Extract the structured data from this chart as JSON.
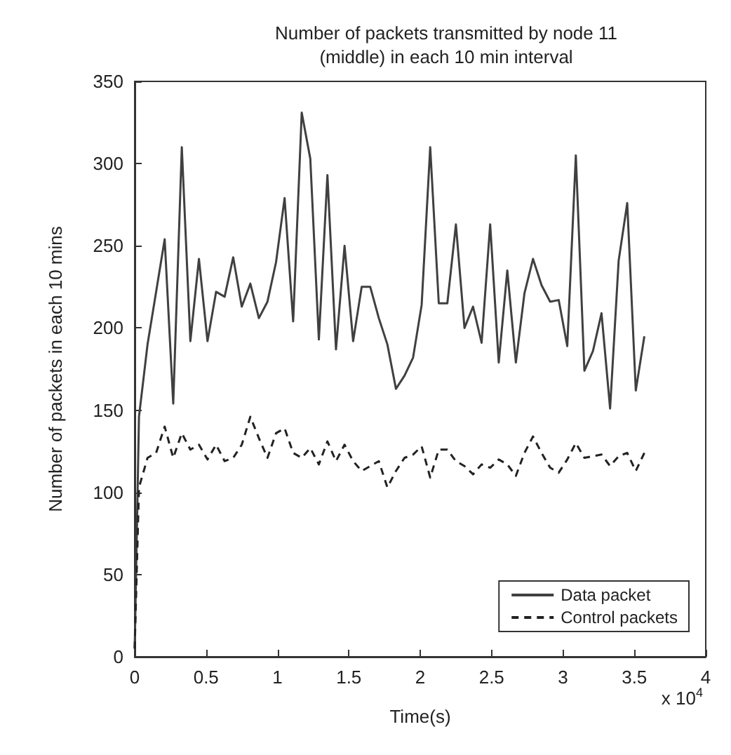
{
  "chart_data": {
    "type": "line",
    "title": "Number of packets transmitted by node 11\n(middle) in each 10 min interval",
    "xlabel": "Time(s)",
    "ylabel": "Number of packets in each 10 mins",
    "annotations": [
      "x 10$^{4}$"
    ],
    "x": [
      0,
      0.03,
      0.09,
      0.15,
      0.21,
      0.27,
      0.33,
      0.39,
      0.45,
      0.51,
      0.57,
      0.63,
      0.69,
      0.75,
      0.81,
      0.87,
      0.93,
      0.99,
      1.05,
      1.11,
      1.17,
      1.23,
      1.29,
      1.35,
      1.41,
      1.47,
      1.53,
      1.59,
      1.65,
      1.71,
      1.77,
      1.83,
      1.89,
      1.95,
      2.01,
      2.07,
      2.13,
      2.19,
      2.25,
      2.31,
      2.37,
      2.43,
      2.49,
      2.55,
      2.61,
      2.67,
      2.73,
      2.79,
      2.85,
      2.91,
      2.97,
      3.03,
      3.09,
      3.15,
      3.21,
      3.27,
      3.33,
      3.39,
      3.45,
      3.51,
      3.57
    ],
    "series": [
      {
        "name": "Data packet",
        "color": "#404040",
        "line_style": "solid",
        "values": [
          5,
          146,
          190,
          222,
          254,
          154,
          310,
          192,
          242,
          192,
          222,
          219,
          243,
          213,
          227,
          206,
          216,
          240,
          279,
          204,
          331,
          303,
          193,
          293,
          187,
          250,
          192,
          225,
          225,
          206,
          190,
          163,
          171,
          182,
          214,
          310,
          215,
          215,
          263,
          200,
          213,
          191,
          263,
          179,
          235,
          179,
          221,
          242,
          226,
          216,
          217,
          189,
          305,
          174,
          186,
          209,
          151,
          241,
          276,
          162,
          195
        ]
      },
      {
        "name": "Control packets",
        "color": "#222222",
        "line_style": "dashed",
        "values": [
          5,
          103,
          121,
          124,
          140,
          121,
          136,
          126,
          129,
          120,
          129,
          119,
          121,
          129,
          146,
          133,
          121,
          136,
          139,
          124,
          121,
          127,
          117,
          131,
          119,
          129,
          119,
          113,
          116,
          119,
          103,
          113,
          121,
          123,
          128,
          109,
          126,
          126,
          119,
          116,
          111,
          117,
          115,
          120,
          117,
          110,
          124,
          134,
          124,
          115,
          112,
          120,
          130,
          121,
          122,
          123,
          116,
          122,
          124,
          113,
          124
        ]
      }
    ],
    "xlim": [
      0,
      4
    ],
    "xticks": [
      0,
      0.5,
      1,
      1.5,
      2,
      2.5,
      3,
      3.5,
      4
    ],
    "ylim": [
      0,
      350
    ],
    "yticks": [
      0,
      50,
      100,
      150,
      200,
      250,
      300,
      350
    ],
    "grid": false,
    "legend": "bottom right",
    "marker": "none"
  }
}
